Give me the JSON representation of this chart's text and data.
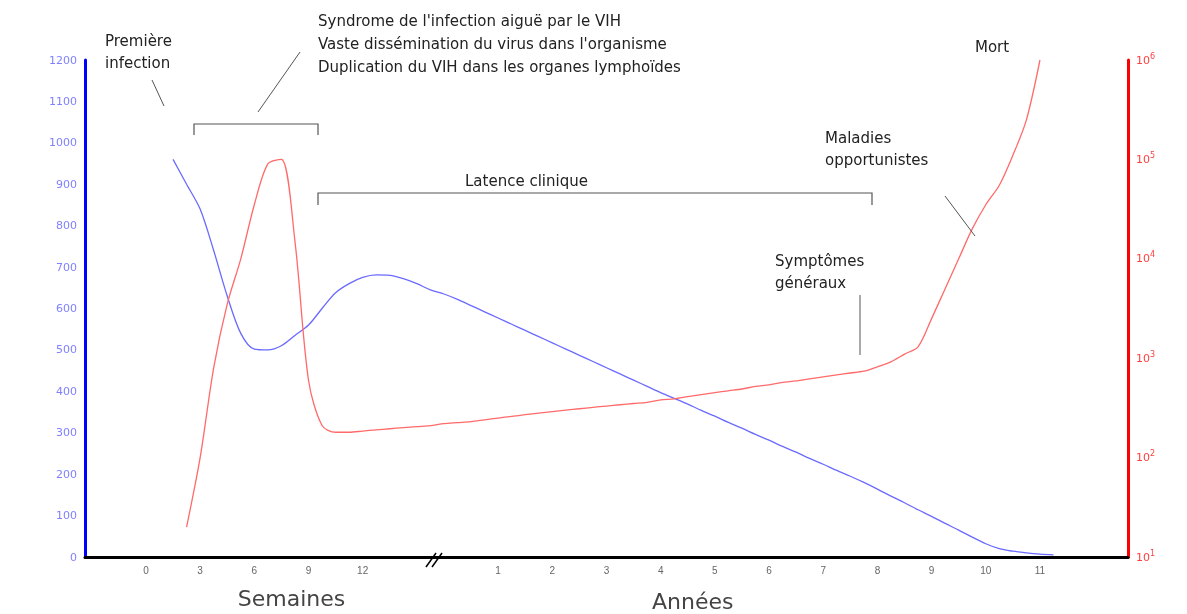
{
  "chart_data": {
    "type": "line",
    "xlabel": "Semaines",
    "annotations": [
      "Première infection",
      "Syndrome de l'infection aiguë par le VIH",
      "Vaste dissémination du virus dans l'organisme",
      "Duplication du VIH dans les organes lymphoïdes",
      "Latence clinique",
      "Symptômes généraux",
      "Maladies opportunistes",
      "Mort",
      "Années"
    ],
    "categories": [
      null,
      null,
      null,
      null,
      "0",
      null,
      null,
      null,
      "3",
      null,
      null,
      null,
      "6",
      null,
      null,
      null,
      "9",
      null,
      null,
      null,
      "12",
      null,
      null,
      null,
      null,
      null,
      null,
      null,
      null,
      null,
      "1",
      null,
      null,
      null,
      "2",
      null,
      null,
      null,
      "3",
      null,
      null,
      null,
      "4",
      null,
      null,
      null,
      "5",
      null,
      null,
      null,
      "6",
      null,
      null,
      null,
      "7",
      null,
      null,
      null,
      "8",
      null,
      null,
      null,
      "9",
      null,
      null,
      null,
      "10",
      null,
      null,
      null,
      "11",
      null,
      null,
      null,
      null,
      null,
      null
    ],
    "series": [
      {
        "color": "#6a6aff",
        "values": [
          null,
          null,
          null,
          null,
          null,
          null,
          960,
          900,
          840,
          740,
          630,
          540,
          502,
          500,
          510,
          535,
          560,
          600,
          638,
          660,
          675,
          681,
          680,
          672,
          660,
          645,
          635,
          622,
          607,
          592,
          577,
          562,
          547,
          532,
          517,
          502,
          487,
          472,
          457,
          442,
          427,
          412,
          397,
          383,
          369,
          354,
          340,
          325,
          311,
          296,
          282,
          267,
          253,
          238,
          224,
          209,
          195,
          180,
          164,
          147,
          131,
          114,
          98,
          81,
          65,
          48,
          32,
          20,
          14,
          10,
          7,
          5,
          null,
          null,
          null,
          null,
          null
        ]
      },
      {
        "color": "#ff6a6a",
        "axis": "y2",
        "values": [
          null,
          null,
          null,
          null,
          null,
          null,
          null,
          20,
          100,
          800,
          3500,
          10000,
          35000,
          90000,
          100000,
          15000,
          600,
          210,
          180,
          180,
          185,
          190,
          195,
          200,
          205,
          210,
          220,
          225,
          230,
          240,
          250,
          260,
          270,
          280,
          290,
          300,
          310,
          320,
          330,
          340,
          350,
          360,
          380,
          390,
          410,
          430,
          450,
          470,
          490,
          520,
          540,
          570,
          590,
          620,
          650,
          680,
          710,
          740,
          820,
          920,
          1100,
          1300,
          2500,
          5000,
          10000,
          20000,
          35000,
          55000,
          110000,
          250000,
          1000000,
          null,
          null,
          null,
          null,
          null,
          null
        ]
      }
    ],
    "ylim": [
      0,
      1200
    ],
    "yticks": [
      0,
      100,
      200,
      300,
      400,
      500,
      600,
      700,
      800,
      900,
      1000,
      1100,
      1200
    ],
    "y2lim": [
      10,
      1000000
    ],
    "y2ticks": [
      {
        "value": 10,
        "label": "10$^{1}$"
      },
      {
        "value": 100,
        "label": "10$^{2}$"
      },
      {
        "value": 1000,
        "label": "10$^{3}$"
      },
      {
        "value": 10000,
        "label": "10$^{4}$"
      },
      {
        "value": 100000,
        "label": "10$^{5}$"
      },
      {
        "value": 1000000,
        "label": "10$^{6}$"
      }
    ],
    "log": "y2",
    "grid": false,
    "marker": "none",
    "line_style": "solid"
  }
}
